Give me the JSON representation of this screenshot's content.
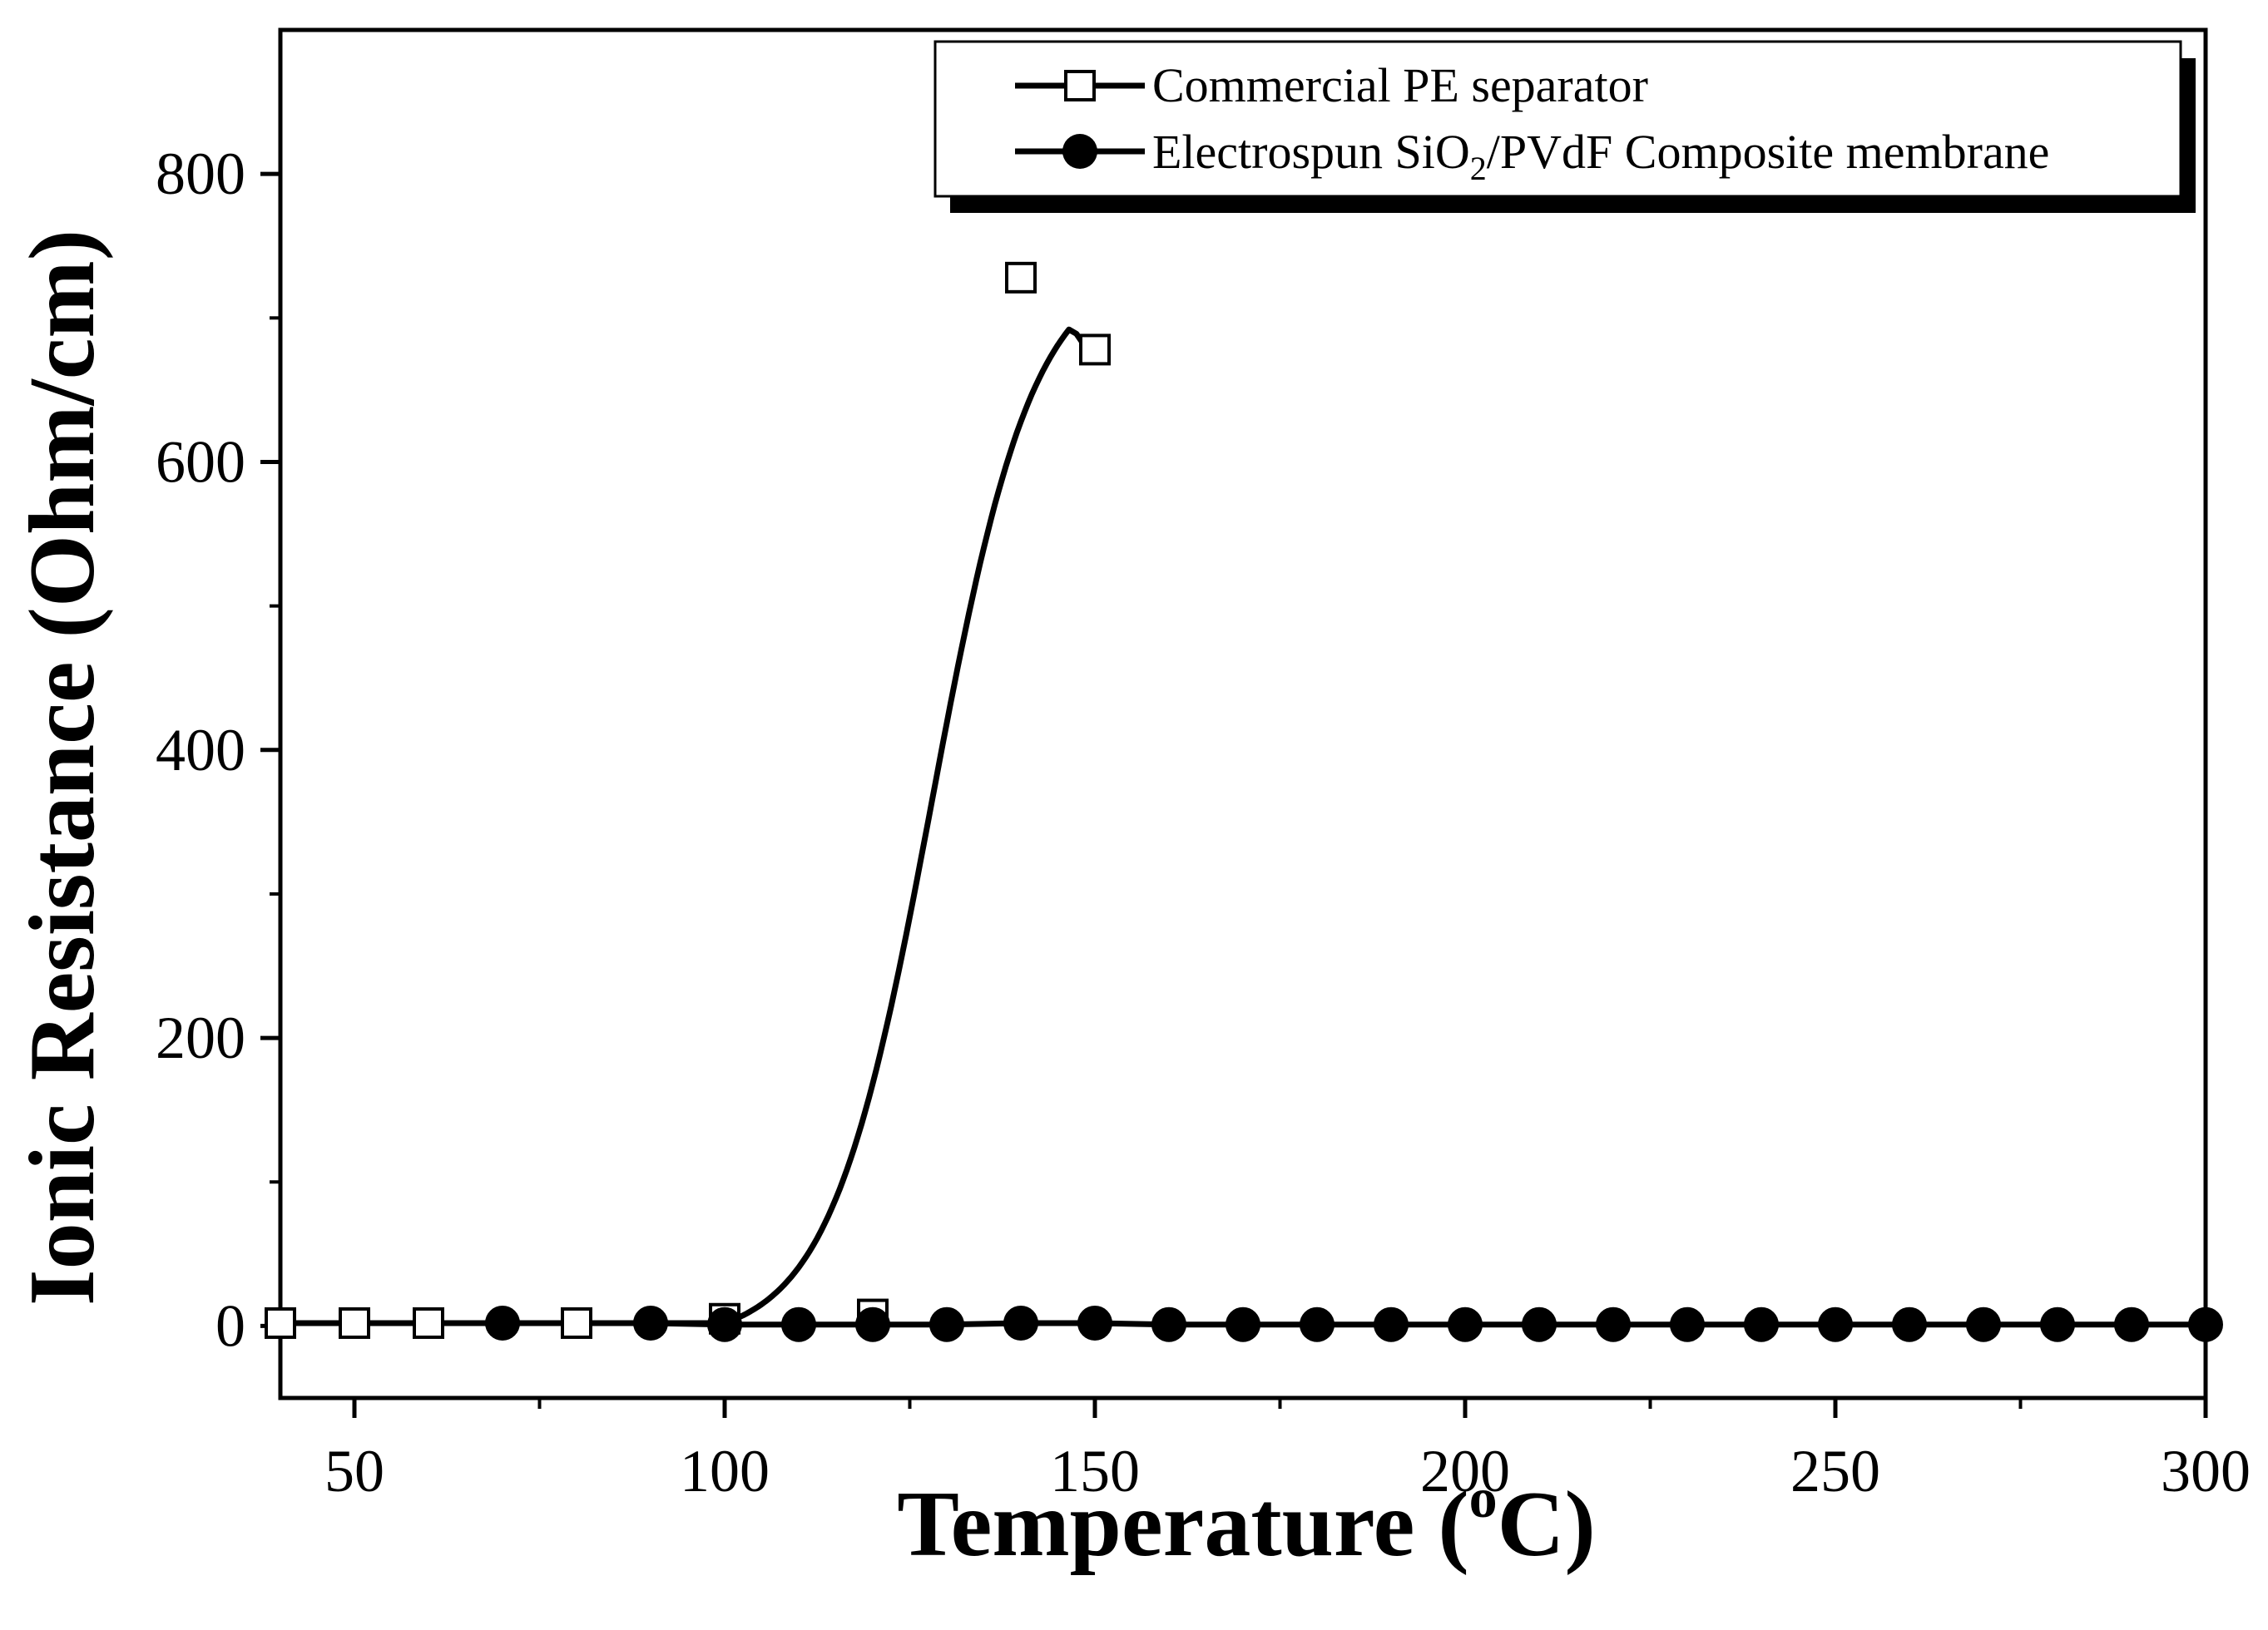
{
  "chart_data": {
    "type": "line",
    "title": "",
    "xlabel": "Temperature (",
    "xlabel_sup": "o",
    "xlabel_suffix": "C)",
    "ylabel": "Ionic Resistance (Ohm/cm)",
    "xlim": [
      40,
      300
    ],
    "ylim": [
      -50,
      900
    ],
    "x_ticks": [
      50,
      100,
      150,
      200,
      250,
      300
    ],
    "x_tick_labels": [
      "50",
      "100",
      "150",
      "200",
      "250",
      "300"
    ],
    "y_ticks": [
      0,
      200,
      400,
      600,
      800
    ],
    "y_tick_labels": [
      "0",
      "200",
      "400",
      "600",
      "800"
    ],
    "grid": false,
    "legend_position": "top-right",
    "series": [
      {
        "name": "Commercial PE separator",
        "marker": "open-square",
        "x": [
          40,
          50,
          60,
          80,
          100,
          120,
          140,
          150
        ],
        "y": [
          2,
          2,
          2,
          2,
          5,
          8,
          728,
          678
        ],
        "fit_curve": "sigmoid rising from ~2 near 100 to peak ~692 near 146"
      },
      {
        "name": "Electrospun SiO2/PVdF Composite membrane",
        "legend_parts": [
          "Electrospun SiO",
          "2",
          "/PVdF Composite membrane"
        ],
        "marker": "filled-circle",
        "x": [
          70,
          90,
          100,
          110,
          120,
          130,
          140,
          150,
          160,
          170,
          180,
          190,
          200,
          210,
          220,
          230,
          240,
          250,
          260,
          270,
          280,
          290,
          300
        ],
        "y": [
          2,
          2,
          1,
          1,
          1,
          1,
          2,
          2,
          1,
          1,
          1,
          1,
          1,
          1,
          1,
          1,
          1,
          1,
          1,
          1,
          1,
          1,
          1
        ]
      }
    ]
  }
}
